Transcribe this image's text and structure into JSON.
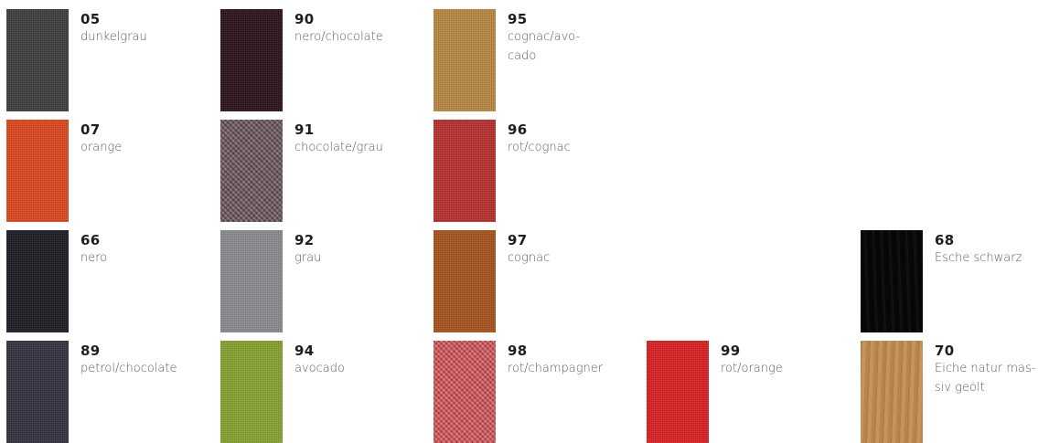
{
  "swatches": [
    {
      "code": "05",
      "name": "dunkelgrau",
      "color": "#3a3d3b",
      "texture": "fabric"
    },
    {
      "code": "90",
      "name": "nero/chocolate",
      "color": "#2a1218",
      "texture": "fabric"
    },
    {
      "code": "95",
      "name": "cognac/avo-\ncado",
      "color": "#b88a43",
      "texture": "fabric"
    },
    {
      "code": "07",
      "name": "orange",
      "color": "#e0481f",
      "texture": "fabric"
    },
    {
      "code": "91",
      "name": "chocolate/grau",
      "color": "#6b5560",
      "texture": "coarse"
    },
    {
      "code": "96",
      "name": "rot/cognac",
      "color": "#b82f2c",
      "texture": "fabric"
    },
    {
      "code": "66",
      "name": "nero",
      "color": "#1b1c22",
      "texture": "fabric"
    },
    {
      "code": "92",
      "name": "grau",
      "color": "#8b8c90",
      "texture": "fabric"
    },
    {
      "code": "97",
      "name": "cognac",
      "color": "#a8531c",
      "texture": "fabric"
    },
    {
      "code": "68",
      "name": "Esche schwarz",
      "color": "#070707",
      "texture": "wood-dark"
    },
    {
      "code": "89",
      "name": "petrol/chocolate",
      "color": "#35313f",
      "texture": "fabric"
    },
    {
      "code": "94",
      "name": "avocado",
      "color": "#86a42e",
      "texture": "fabric"
    },
    {
      "code": "98",
      "name": "rot/champagner",
      "color": "#d9565a",
      "texture": "coarse"
    },
    {
      "code": "99",
      "name": "rot/orange",
      "color": "#dc1f22",
      "texture": "fabric"
    },
    {
      "code": "70",
      "name": "Eiche natur mas-\nsiv geölt",
      "color": "#c28e51",
      "texture": "wood"
    }
  ]
}
